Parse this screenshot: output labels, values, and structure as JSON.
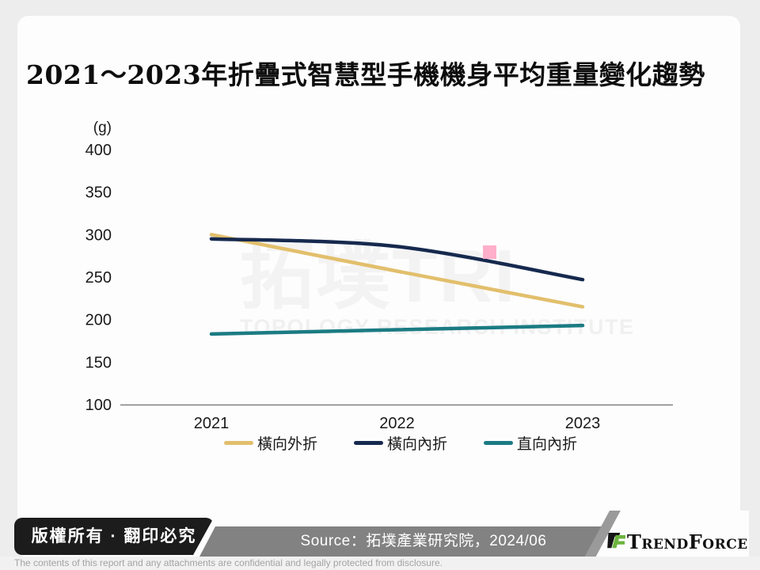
{
  "page": {
    "title": "2021～2023年折疊式智慧型手機機身平均重量變化趨勢"
  },
  "watermark": {
    "big": "拓墣TRI",
    "sub": "TOPOLOGY RESEARCH INSTITUTE"
  },
  "chart_data": {
    "type": "line",
    "title": "2021～2023年折疊式智慧型手機機身平均重量變化趨勢",
    "unit_label": "(g)",
    "categories": [
      "2021",
      "2022",
      "2023"
    ],
    "series": [
      {
        "name": "橫向外折",
        "color": "#e2bf6c",
        "smooth": false,
        "values": [
          300,
          257,
          215
        ]
      },
      {
        "name": "橫向內折",
        "color": "#16294e",
        "smooth": true,
        "values": [
          295,
          286,
          247
        ]
      },
      {
        "name": "直向內折",
        "color": "#1b7b83",
        "smooth": false,
        "values": [
          183,
          188,
          193
        ]
      }
    ],
    "ylim": [
      100,
      400
    ],
    "yticks": [
      400,
      350,
      300,
      250,
      200,
      150,
      100
    ],
    "grid": false,
    "legend_position": "bottom",
    "axis_color": "#808080",
    "annotation": {
      "type": "highlight-square",
      "color": "#ffafc9",
      "near_series": "橫向內折",
      "between_categories": [
        "2022",
        "2023"
      ],
      "approx_value": 279
    }
  },
  "footer": {
    "copyright": "版權所有 · 翻印必究",
    "source": "Source：拓墣產業研究院，2024/06",
    "brand": "TrendForce",
    "disclaimer": "The contents of this report and any attachments are confidential and legally protected from disclosure."
  },
  "logo_colors": {
    "black": "#151515",
    "green": "#6cb33c"
  }
}
